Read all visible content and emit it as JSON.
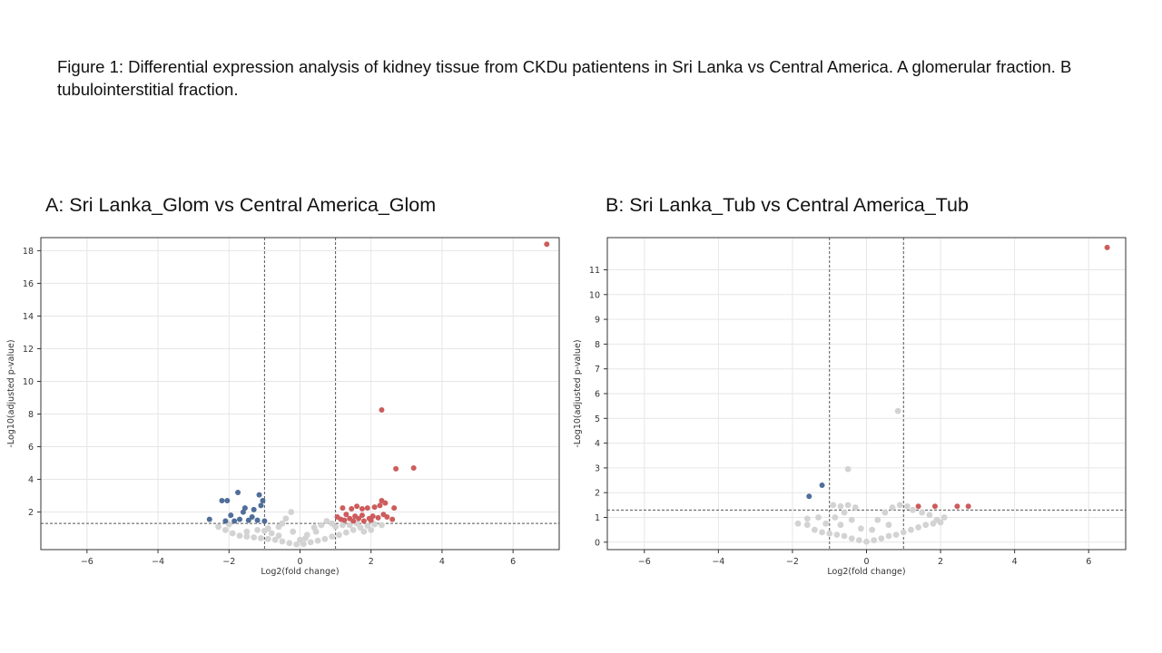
{
  "caption": "Figure 1: Differential expression analysis of kidney tissue from CKDu patientens in Sri Lanka vs Central America. A glomerular fraction. B tubulointerstitial fraction.",
  "colors": {
    "up": "#cd5c5c",
    "down": "#4f6e99",
    "ns": "#d3d3d3",
    "axis": "#333333",
    "grid": "#e6e6e6",
    "threshold": "#555555"
  },
  "chart_data": [
    {
      "type": "scatter",
      "panel_label": "A",
      "title": "A: Sri Lanka_Glom vs Central America_Glom",
      "xlabel": "Log2(fold change)",
      "ylabel": "-Log10(adjusted p-value)",
      "xlim": [
        -7.3,
        7.3
      ],
      "ylim": [
        -0.3,
        18.8
      ],
      "xticks": [
        -6,
        -4,
        -2,
        0,
        2,
        4,
        6
      ],
      "yticks": [
        2,
        4,
        6,
        8,
        10,
        12,
        14,
        16,
        18
      ],
      "grid": true,
      "legend": "none",
      "thresholds": {
        "x": [
          -1,
          1
        ],
        "y": 1.3
      },
      "series": [
        {
          "group": "up",
          "points": [
            [
              6.95,
              18.4
            ],
            [
              2.3,
              8.25
            ],
            [
              3.2,
              4.7
            ],
            [
              2.7,
              4.65
            ],
            [
              2.3,
              2.7
            ],
            [
              2.4,
              2.55
            ],
            [
              2.25,
              2.4
            ],
            [
              2.65,
              2.25
            ],
            [
              1.6,
              2.35
            ],
            [
              1.45,
              2.2
            ],
            [
              1.2,
              2.25
            ],
            [
              1.75,
              2.2
            ],
            [
              1.9,
              2.25
            ],
            [
              2.1,
              2.3
            ],
            [
              1.3,
              1.85
            ],
            [
              1.55,
              1.75
            ],
            [
              1.75,
              1.8
            ],
            [
              2.05,
              1.75
            ],
            [
              2.35,
              1.85
            ],
            [
              1.05,
              1.7
            ],
            [
              1.15,
              1.55
            ],
            [
              1.4,
              1.6
            ],
            [
              1.65,
              1.6
            ],
            [
              1.95,
              1.6
            ],
            [
              2.2,
              1.65
            ],
            [
              2.45,
              1.7
            ],
            [
              2.6,
              1.55
            ],
            [
              1.25,
              1.5
            ],
            [
              1.5,
              1.45
            ],
            [
              1.8,
              1.45
            ],
            [
              2.0,
              1.5
            ]
          ]
        },
        {
          "group": "down",
          "points": [
            [
              -2.2,
              2.7
            ],
            [
              -2.05,
              2.7
            ],
            [
              -1.75,
              3.2
            ],
            [
              -1.15,
              3.05
            ],
            [
              -1.05,
              2.7
            ],
            [
              -1.1,
              2.4
            ],
            [
              -1.55,
              2.25
            ],
            [
              -1.3,
              2.15
            ],
            [
              -1.6,
              2.0
            ],
            [
              -1.95,
              1.8
            ],
            [
              -2.55,
              1.55
            ],
            [
              -2.1,
              1.45
            ],
            [
              -1.7,
              1.55
            ],
            [
              -1.45,
              1.5
            ],
            [
              -1.2,
              1.5
            ],
            [
              -1.35,
              1.7
            ],
            [
              -1.0,
              1.45
            ],
            [
              -1.85,
              1.45
            ]
          ]
        },
        {
          "group": "ns",
          "points": [
            [
              -2.3,
              1.1
            ],
            [
              -2.1,
              0.9
            ],
            [
              -1.9,
              0.7
            ],
            [
              -1.7,
              0.55
            ],
            [
              -1.5,
              0.5
            ],
            [
              -1.3,
              0.45
            ],
            [
              -1.1,
              0.4
            ],
            [
              -0.9,
              0.35
            ],
            [
              -0.7,
              0.3
            ],
            [
              -0.5,
              0.2
            ],
            [
              -0.3,
              0.1
            ],
            [
              -0.1,
              0.02
            ],
            [
              0.1,
              0.05
            ],
            [
              0.3,
              0.15
            ],
            [
              0.5,
              0.25
            ],
            [
              0.7,
              0.35
            ],
            [
              0.9,
              0.5
            ],
            [
              1.1,
              0.6
            ],
            [
              1.3,
              0.75
            ],
            [
              1.5,
              0.9
            ],
            [
              1.7,
              1.05
            ],
            [
              1.9,
              1.15
            ],
            [
              2.1,
              1.25
            ],
            [
              2.3,
              1.2
            ],
            [
              -1.5,
              0.8
            ],
            [
              -1.2,
              0.9
            ],
            [
              -0.9,
              1.0
            ],
            [
              -0.6,
              1.1
            ],
            [
              -0.4,
              1.6
            ],
            [
              -0.25,
              2.0
            ],
            [
              -0.5,
              1.3
            ],
            [
              -0.2,
              0.8
            ],
            [
              0.2,
              0.6
            ],
            [
              0.45,
              0.8
            ],
            [
              0.6,
              1.2
            ],
            [
              0.75,
              1.45
            ],
            [
              0.9,
              1.3
            ],
            [
              0.4,
              1.05
            ],
            [
              1.0,
              1.1
            ],
            [
              1.2,
              1.2
            ],
            [
              1.4,
              1.2
            ],
            [
              1.6,
              1.3
            ],
            [
              1.8,
              0.8
            ],
            [
              2.0,
              0.9
            ],
            [
              -0.8,
              0.7
            ],
            [
              -1.0,
              0.85
            ],
            [
              -2.0,
              1.25
            ],
            [
              -0.6,
              0.55
            ],
            [
              0.0,
              0.3
            ],
            [
              0.15,
              0.4
            ]
          ]
        }
      ]
    },
    {
      "type": "scatter",
      "panel_label": "B",
      "title": "B: Sri Lanka_Tub vs Central America_Tub",
      "xlabel": "Log2(fold change)",
      "ylabel": "-Log10(adjusted p-value)",
      "xlim": [
        -7.0,
        7.0
      ],
      "ylim": [
        -0.3,
        12.3
      ],
      "xticks": [
        -6,
        -4,
        -2,
        0,
        2,
        4,
        6
      ],
      "yticks": [
        0,
        1,
        2,
        3,
        4,
        5,
        6,
        7,
        8,
        9,
        10,
        11
      ],
      "grid": true,
      "legend": "none",
      "thresholds": {
        "x": [
          -1,
          1
        ],
        "y": 1.3
      },
      "series": [
        {
          "group": "up",
          "points": [
            [
              6.5,
              11.9
            ],
            [
              1.4,
              1.45
            ],
            [
              1.85,
              1.45
            ],
            [
              2.45,
              1.45
            ],
            [
              2.75,
              1.45
            ]
          ]
        },
        {
          "group": "down",
          "points": [
            [
              -1.55,
              1.85
            ],
            [
              -1.2,
              2.3
            ]
          ]
        },
        {
          "group": "ns",
          "points": [
            [
              0.85,
              5.3
            ],
            [
              -0.5,
              2.95
            ],
            [
              -1.85,
              0.75
            ],
            [
              -1.6,
              0.7
            ],
            [
              -1.4,
              0.5
            ],
            [
              -1.2,
              0.4
            ],
            [
              -1.0,
              0.35
            ],
            [
              -0.8,
              0.3
            ],
            [
              -0.6,
              0.25
            ],
            [
              -0.4,
              0.15
            ],
            [
              -0.2,
              0.08
            ],
            [
              0.0,
              0.02
            ],
            [
              0.2,
              0.08
            ],
            [
              0.4,
              0.15
            ],
            [
              0.6,
              0.25
            ],
            [
              0.8,
              0.3
            ],
            [
              1.0,
              0.4
            ],
            [
              1.2,
              0.5
            ],
            [
              1.4,
              0.6
            ],
            [
              1.6,
              0.7
            ],
            [
              1.8,
              0.75
            ],
            [
              2.0,
              0.8
            ],
            [
              -0.9,
              1.5
            ],
            [
              -0.7,
              1.45
            ],
            [
              -0.5,
              1.5
            ],
            [
              -0.3,
              1.4
            ],
            [
              -0.6,
              1.2
            ],
            [
              -0.85,
              1.0
            ],
            [
              -0.4,
              0.9
            ],
            [
              0.3,
              0.9
            ],
            [
              0.5,
              1.2
            ],
            [
              0.7,
              1.4
            ],
            [
              0.9,
              1.5
            ],
            [
              1.1,
              1.45
            ],
            [
              1.25,
              1.3
            ],
            [
              1.5,
              1.2
            ],
            [
              1.7,
              1.1
            ],
            [
              -1.3,
              1.0
            ],
            [
              -1.1,
              0.75
            ],
            [
              0.15,
              0.5
            ],
            [
              -0.15,
              0.55
            ],
            [
              0.6,
              0.7
            ],
            [
              -0.7,
              0.7
            ],
            [
              1.9,
              0.9
            ],
            [
              -1.6,
              0.95
            ],
            [
              2.1,
              1.0
            ]
          ]
        }
      ]
    }
  ]
}
